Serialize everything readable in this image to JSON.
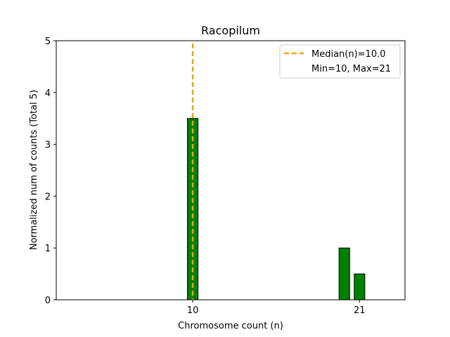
{
  "chart_data": {
    "type": "bar",
    "title": "Racopilum",
    "xlabel": "Chromosome count (n)",
    "ylabel": "Normalized num of counts     (Total 5)",
    "xlim": [
      1,
      24
    ],
    "ylim": [
      0,
      5
    ],
    "yticks": [
      0,
      1,
      2,
      3,
      4,
      5
    ],
    "xticks": [
      10,
      21
    ],
    "bar_width": 0.7,
    "bars": [
      {
        "x": 10,
        "value": 3.5
      },
      {
        "x": 20,
        "value": 1
      },
      {
        "x": 21,
        "value": 0.5
      }
    ],
    "bar_color": "#008000",
    "bar_edge_color": "#000000",
    "median": {
      "x": 10,
      "color": "#f0a30a"
    },
    "legend": {
      "position": "top-right",
      "entries": [
        {
          "label": "Median(n)=10.0",
          "style": "dashed-line"
        },
        {
          "label": "Min=10, Max=21",
          "style": "none"
        }
      ]
    }
  }
}
